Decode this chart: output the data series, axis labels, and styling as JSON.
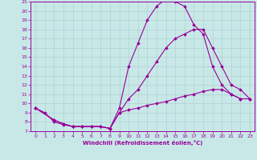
{
  "xlabel": "Windchill (Refroidissement éolien,°C)",
  "bg_color": "#c8e8e8",
  "line_color": "#990099",
  "grid_color": "#aacccc",
  "xlim": [
    -0.5,
    23.5
  ],
  "ylim": [
    7,
    21
  ],
  "yticks": [
    7,
    8,
    9,
    10,
    11,
    12,
    13,
    14,
    15,
    16,
    17,
    18,
    19,
    20,
    21
  ],
  "xticks": [
    0,
    1,
    2,
    3,
    4,
    5,
    6,
    7,
    8,
    9,
    10,
    11,
    12,
    13,
    14,
    15,
    16,
    17,
    18,
    19,
    20,
    21,
    22,
    23
  ],
  "line1_x": [
    0,
    1,
    2,
    3,
    4,
    5,
    6,
    7,
    8,
    9,
    10,
    11,
    12,
    13,
    14,
    15,
    16,
    17,
    18,
    19,
    20,
    21,
    22
  ],
  "line1_y": [
    9.5,
    9.0,
    8.0,
    7.7,
    7.5,
    7.5,
    7.5,
    7.5,
    7.3,
    9.5,
    14.0,
    16.5,
    19.0,
    20.5,
    21.3,
    21.0,
    20.5,
    18.5,
    17.5,
    14.0,
    12.0,
    11.0,
    10.5
  ],
  "line2_x": [
    0,
    2,
    3,
    4,
    5,
    6,
    7,
    8,
    9,
    10,
    11,
    12,
    13,
    14,
    15,
    16,
    17,
    18,
    19,
    20,
    21,
    22,
    23
  ],
  "line2_y": [
    9.5,
    8.2,
    7.8,
    7.5,
    7.5,
    7.5,
    7.5,
    7.3,
    9.0,
    10.5,
    11.5,
    13.0,
    14.5,
    16.0,
    17.0,
    17.5,
    18.0,
    18.0,
    16.0,
    14.0,
    12.0,
    11.5,
    10.5
  ],
  "line3_x": [
    0,
    2,
    3,
    4,
    5,
    6,
    7,
    8,
    9,
    10,
    11,
    12,
    13,
    14,
    15,
    16,
    17,
    18,
    19,
    20,
    21,
    22,
    23
  ],
  "line3_y": [
    9.5,
    8.2,
    7.8,
    7.5,
    7.5,
    7.5,
    7.5,
    7.3,
    9.0,
    9.3,
    9.5,
    9.8,
    10.0,
    10.2,
    10.5,
    10.8,
    11.0,
    11.3,
    11.5,
    11.5,
    11.0,
    10.5,
    10.5
  ],
  "marker": "D",
  "markersize": 1.8,
  "linewidth": 0.8
}
